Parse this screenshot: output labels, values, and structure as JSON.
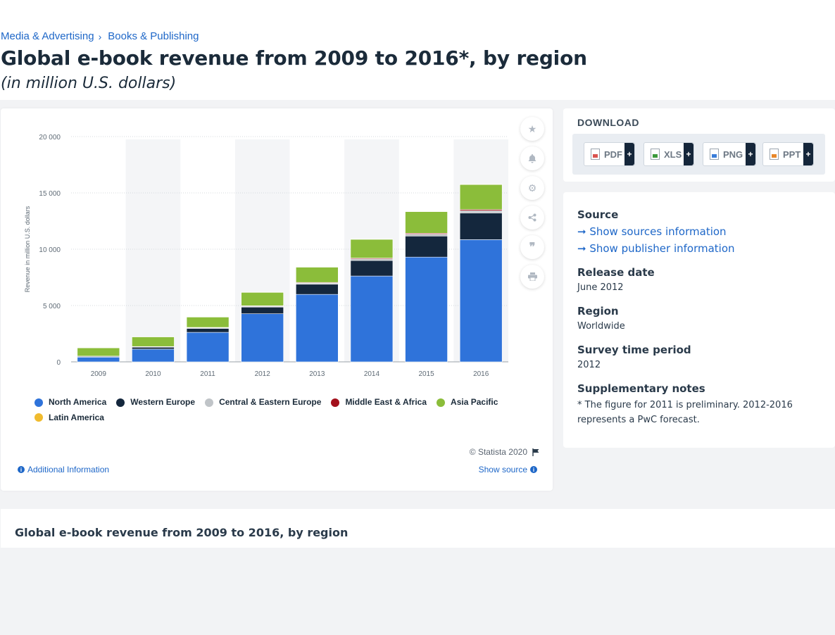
{
  "breadcrumb": {
    "item1": "Media & Advertising",
    "separator": "›",
    "item2": "Books & Publishing"
  },
  "header": {
    "title": "Global e-book revenue from 2009 to 2016*, by region",
    "subtitle": "(in million U.S. dollars)"
  },
  "toolbar": {
    "icons": [
      "star-icon",
      "bell-icon",
      "gear-icon",
      "share-icon",
      "quote-icon",
      "print-icon"
    ]
  },
  "chart_footer": {
    "copyright": "© Statista 2020",
    "additional_info": "Additional Information",
    "show_source": "Show source"
  },
  "download": {
    "title": "DOWNLOAD",
    "buttons": [
      {
        "label": "PDF",
        "color": "#d9534f"
      },
      {
        "label": "XLS",
        "color": "#3c9a3c"
      },
      {
        "label": "PNG",
        "color": "#3b7dd8"
      },
      {
        "label": "PPT",
        "color": "#e8872a"
      }
    ],
    "plus": "+"
  },
  "info": {
    "source_heading": "Source",
    "show_sources": "Show sources information",
    "show_publisher": "Show publisher information",
    "release_heading": "Release date",
    "release_value": "June 2012",
    "region_heading": "Region",
    "region_value": "Worldwide",
    "survey_heading": "Survey time period",
    "survey_value": "2012",
    "notes_heading": "Supplementary notes",
    "notes_value": "* The figure for 2011 is preliminary. 2012-2016 represents a PwC forecast."
  },
  "bottom": {
    "title": "Global e-book revenue from 2009 to 2016, by region"
  },
  "chart_data": {
    "type": "bar",
    "stacked": true,
    "categories": [
      "2009",
      "2010",
      "2011",
      "2012",
      "2013",
      "2014",
      "2015",
      "2016"
    ],
    "ylabel": "Revenue in million U.S. dollars",
    "ylim": [
      0,
      20000
    ],
    "yticks": [
      0,
      5000,
      10000,
      15000,
      20000
    ],
    "ytick_labels": [
      "0",
      "5 000",
      "10 000",
      "15 000",
      "20 000"
    ],
    "grid": true,
    "legend_position": "bottom",
    "series": [
      {
        "name": "North America",
        "color": "#2f73da",
        "values": [
          420,
          1130,
          2620,
          4270,
          5990,
          7620,
          9300,
          10850
        ]
      },
      {
        "name": "Western Europe",
        "color": "#14273d",
        "values": [
          60,
          170,
          350,
          590,
          900,
          1380,
          1870,
          2370
        ]
      },
      {
        "name": "Central & Eastern Europe",
        "color": "#c0c4c8",
        "values": [
          20,
          40,
          60,
          80,
          110,
          140,
          170,
          200
        ]
      },
      {
        "name": "Middle East & Africa",
        "color": "#a3101c",
        "values": [
          10,
          20,
          30,
          40,
          50,
          70,
          80,
          100
        ]
      },
      {
        "name": "Asia Pacific",
        "color": "#8bbd3a",
        "values": [
          730,
          860,
          920,
          1190,
          1360,
          1670,
          1920,
          2220
        ]
      },
      {
        "name": "Latin America",
        "color": "#f0bb2e",
        "values": [
          5,
          10,
          15,
          20,
          25,
          30,
          35,
          40
        ]
      }
    ]
  }
}
